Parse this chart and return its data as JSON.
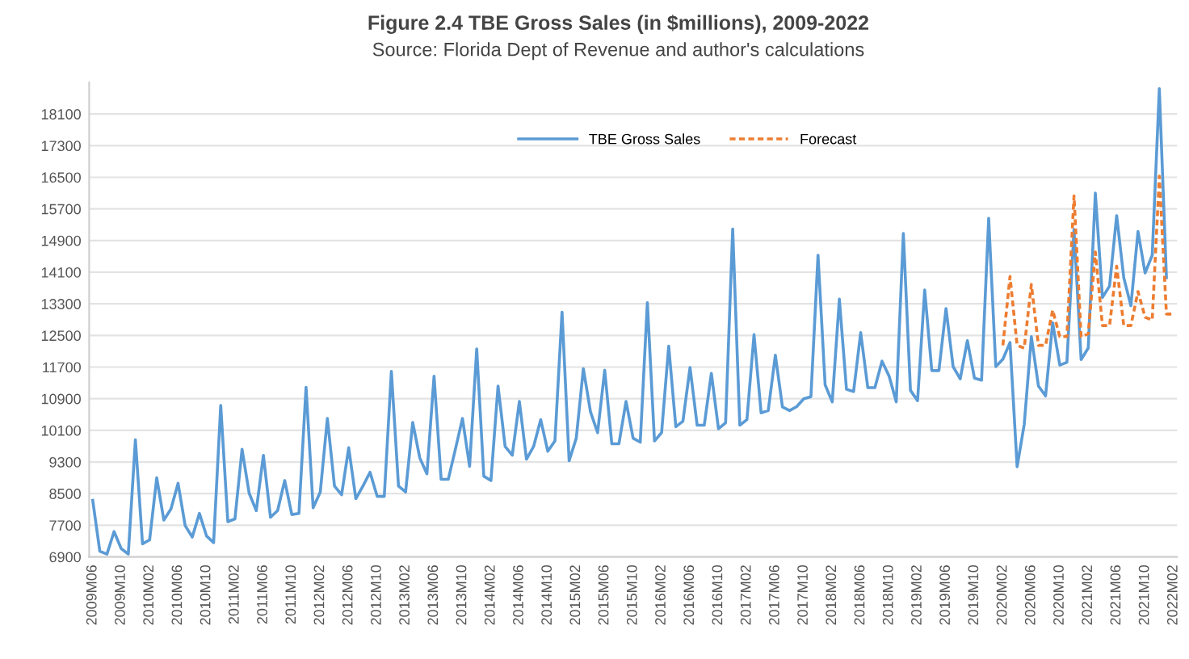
{
  "chart_data": {
    "type": "line",
    "title": "Figure 2.4 TBE Gross Sales (in $millions), 2009-2022",
    "subtitle": "Source: Florida Dept of Revenue and author's calculations",
    "categories": [
      "2009M06",
      null,
      null,
      null,
      "2009M10",
      null,
      null,
      null,
      "2010M02",
      null,
      null,
      null,
      "2010M06",
      null,
      null,
      null,
      "2010M10",
      null,
      null,
      null,
      "2011M02",
      null,
      null,
      null,
      "2011M06",
      null,
      null,
      null,
      "2011M10",
      null,
      null,
      null,
      "2012M02",
      null,
      null,
      null,
      "2012M06",
      null,
      null,
      null,
      "2012M10",
      null,
      null,
      null,
      "2013M02",
      null,
      null,
      null,
      "2013M06",
      null,
      null,
      null,
      "2013M10",
      null,
      null,
      null,
      "2014M02",
      null,
      null,
      null,
      "2014M06",
      null,
      null,
      null,
      "2014M10",
      null,
      null,
      null,
      "2015M02",
      null,
      null,
      null,
      "2015M06",
      null,
      null,
      null,
      "2015M10",
      null,
      null,
      null,
      "2016M02",
      null,
      null,
      null,
      "2016M06",
      null,
      null,
      null,
      "2016M10",
      null,
      null,
      null,
      "2017M02",
      null,
      null,
      null,
      "2017M06",
      null,
      null,
      null,
      "2017M10",
      null,
      null,
      null,
      "2018M02",
      null,
      null,
      null,
      "2018M06",
      null,
      null,
      null,
      "2018M10",
      null,
      null,
      null,
      "2019M02",
      null,
      null,
      null,
      "2019M06",
      null,
      null,
      null,
      "2019M10",
      null,
      null,
      null,
      "2020M02",
      null,
      null,
      null,
      "2020M06",
      null,
      null,
      null,
      "2020M10",
      null,
      null,
      null,
      "2021M02",
      null,
      null,
      null,
      "2021M06",
      null,
      null,
      null,
      "2021M10",
      null,
      null,
      null,
      "2022M02"
    ],
    "series": [
      {
        "name": "TBE Gross Sales",
        "color": "#5b9bd5",
        "line_style": "solid",
        "values": [
          8330,
          7040,
          6970,
          7540,
          7110,
          6970,
          9860,
          7230,
          7330,
          8900,
          7830,
          8110,
          8760,
          7690,
          7400,
          8000,
          7430,
          7260,
          10730,
          7790,
          7860,
          9620,
          8510,
          8070,
          9470,
          7900,
          8070,
          8830,
          7970,
          8000,
          11190,
          8140,
          8540,
          10400,
          8690,
          8470,
          9660,
          8370,
          8690,
          9040,
          8430,
          8430,
          11590,
          8690,
          8540,
          10300,
          9400,
          9000,
          11470,
          8860,
          8860,
          9620,
          10400,
          9190,
          12160,
          8940,
          8830,
          11220,
          9690,
          9470,
          10830,
          9370,
          9690,
          10370,
          9570,
          9830,
          13090,
          9330,
          9900,
          11660,
          10570,
          10040,
          11620,
          9760,
          9760,
          10830,
          9900,
          9800,
          13330,
          9830,
          10040,
          12230,
          10190,
          10330,
          11690,
          10230,
          10230,
          11540,
          10140,
          10290,
          15190,
          10230,
          10370,
          12520,
          10540,
          10600,
          12000,
          10690,
          10600,
          10700,
          10900,
          10950,
          14530,
          11250,
          10820,
          13420,
          11140,
          11080,
          12570,
          11180,
          11180,
          11850,
          11470,
          10820,
          15080,
          11110,
          10850,
          13650,
          11610,
          11610,
          13180,
          11710,
          11400,
          12370,
          11420,
          11370,
          15460,
          11710,
          11900,
          12320,
          9180,
          10250,
          12470,
          11220,
          10970,
          12820,
          11750,
          11820,
          15180,
          11890,
          12180,
          16100,
          13460,
          13750,
          15530,
          13960,
          13250,
          15130,
          14080,
          14530,
          18740,
          13960,
          null
        ]
      },
      {
        "name": "Forecast",
        "color": "#ed7d31",
        "line_style": "dotted",
        "values": [
          null,
          null,
          null,
          null,
          null,
          null,
          null,
          null,
          null,
          null,
          null,
          null,
          null,
          null,
          null,
          null,
          null,
          null,
          null,
          null,
          null,
          null,
          null,
          null,
          null,
          null,
          null,
          null,
          null,
          null,
          null,
          null,
          null,
          null,
          null,
          null,
          null,
          null,
          null,
          null,
          null,
          null,
          null,
          null,
          null,
          null,
          null,
          null,
          null,
          null,
          null,
          null,
          null,
          null,
          null,
          null,
          null,
          null,
          null,
          null,
          null,
          null,
          null,
          null,
          null,
          null,
          null,
          null,
          null,
          null,
          null,
          null,
          null,
          null,
          null,
          null,
          null,
          null,
          null,
          null,
          null,
          null,
          null,
          null,
          null,
          null,
          null,
          null,
          null,
          null,
          null,
          null,
          null,
          null,
          null,
          null,
          null,
          null,
          null,
          null,
          null,
          null,
          null,
          null,
          null,
          null,
          null,
          null,
          null,
          null,
          null,
          null,
          null,
          null,
          null,
          null,
          null,
          null,
          null,
          null,
          null,
          null,
          null,
          null,
          null,
          null,
          null,
          null,
          12250,
          13990,
          12250,
          12180,
          13790,
          12250,
          12250,
          13140,
          12470,
          12470,
          16030,
          12470,
          12540,
          14610,
          12750,
          12750,
          14250,
          12750,
          12750,
          13610,
          12960,
          12890,
          16530,
          13040,
          13040
        ]
      }
    ],
    "ylim": [
      6900,
      18900
    ],
    "yticks": [
      6900,
      7700,
      8500,
      9300,
      10100,
      10900,
      11700,
      12500,
      13300,
      14100,
      14900,
      15700,
      16500,
      17300,
      18100
    ],
    "grid": "y",
    "legend": "top",
    "marker": "none"
  }
}
